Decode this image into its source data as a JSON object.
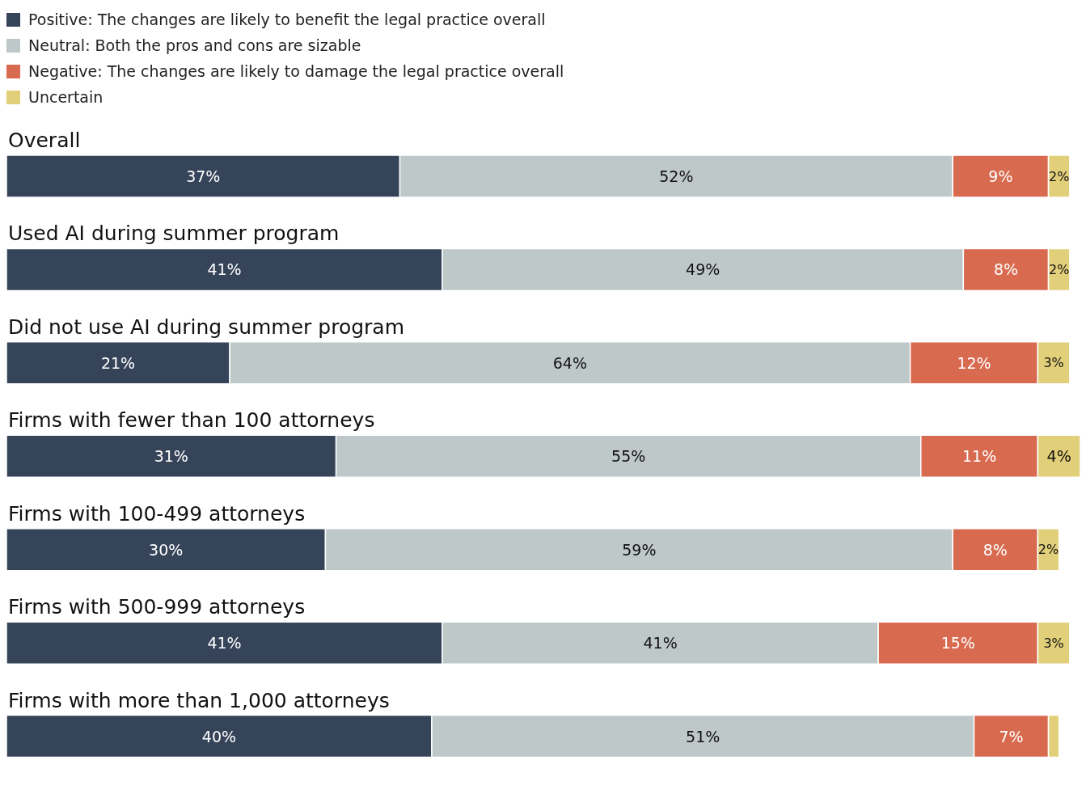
{
  "chart_data": {
    "type": "bar",
    "orientation": "horizontal",
    "stacked": true,
    "legend": "top left",
    "categories": [
      "Overall",
      "Used AI during summer program",
      "Did not use AI during summer program",
      "Firms with fewer than 100 attorneys",
      "Firms with 100-499 attorneys",
      "Firms with 500-999 attorneys",
      "Firms with more than 1,000 attorneys"
    ],
    "series": [
      {
        "name": "Positive: The changes are likely to benefit the legal practice overall",
        "color": "#36445a",
        "values": [
          37,
          41,
          21,
          31,
          30,
          41,
          40
        ],
        "value_labels": [
          "37%",
          "41%",
          "21%",
          "31%",
          "30%",
          "41%",
          "40%"
        ]
      },
      {
        "name": "Neutral: Both the pros and cons are sizable",
        "color": "#bfc8c9",
        "values": [
          52,
          49,
          64,
          55,
          59,
          41,
          51
        ],
        "value_labels": [
          "52%",
          "49%",
          "64%",
          "55%",
          "59%",
          "41%",
          "51%"
        ]
      },
      {
        "name": "Negative: The changes are likely to damage the legal practice overall",
        "color": "#d86a50",
        "values": [
          9,
          8,
          12,
          11,
          8,
          15,
          7
        ],
        "value_labels": [
          "9%",
          "8%",
          "12%",
          "11%",
          "8%",
          "15%",
          "7%"
        ]
      },
      {
        "name": "Uncertain",
        "color": "#e2cf7a",
        "values": [
          2,
          2,
          3,
          4,
          2,
          3,
          1
        ],
        "value_labels": [
          "2%",
          "2%",
          "3%",
          "4%",
          "2%",
          "3%",
          null
        ]
      }
    ]
  }
}
